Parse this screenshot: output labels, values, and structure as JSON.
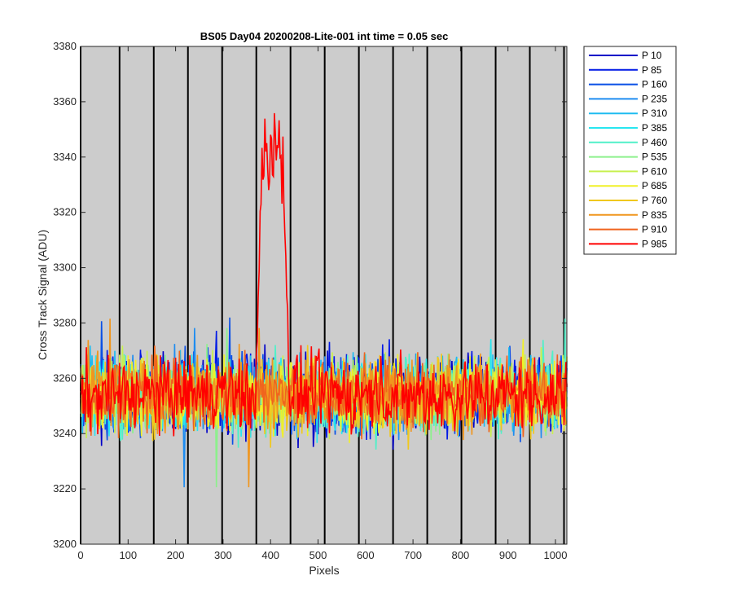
{
  "chart_data": {
    "type": "line",
    "title": "BS05 Day04 20200208-Lite-001 int time = 0.05 sec",
    "xlabel": "Pixels",
    "ylabel": "Cross Track Signal (ADU)",
    "xlim": [
      0,
      1024
    ],
    "ylim": [
      3200,
      3380
    ],
    "xticks": [
      0,
      100,
      200,
      300,
      400,
      500,
      600,
      700,
      800,
      900,
      1000
    ],
    "yticks": [
      3200,
      3220,
      3240,
      3260,
      3280,
      3300,
      3320,
      3340,
      3360,
      3380
    ],
    "grid": "vertical lines at column boundaries",
    "vertical_lines": [
      0,
      82,
      154,
      226,
      298,
      370,
      442,
      514,
      586,
      658,
      730,
      802,
      874,
      946,
      1018
    ],
    "background": "#cccccc",
    "legend_position": "outside-right",
    "baseline_mean": 3254,
    "baseline_noise_range": [
      3220,
      3282
    ],
    "peak": {
      "series": "P 985",
      "x_range": [
        370,
        440
      ],
      "max_value": 3370,
      "approx_max_x": 395
    },
    "series": [
      {
        "name": "P 10",
        "color": "#0000c8"
      },
      {
        "name": "P 85",
        "color": "#0019e6"
      },
      {
        "name": "P 160",
        "color": "#0a50e6"
      },
      {
        "name": "P 235",
        "color": "#1e8cf0"
      },
      {
        "name": "P 310",
        "color": "#1ebcf0"
      },
      {
        "name": "P 385",
        "color": "#28e6f0"
      },
      {
        "name": "P 460",
        "color": "#50f0c8"
      },
      {
        "name": "P 535",
        "color": "#8cf08c"
      },
      {
        "name": "P 610",
        "color": "#c8f050"
      },
      {
        "name": "P 685",
        "color": "#f0f028"
      },
      {
        "name": "P 760",
        "color": "#f0c81e"
      },
      {
        "name": "P 835",
        "color": "#f0961e"
      },
      {
        "name": "P 910",
        "color": "#f0641e"
      },
      {
        "name": "P 985",
        "color": "#ff0000"
      }
    ]
  }
}
